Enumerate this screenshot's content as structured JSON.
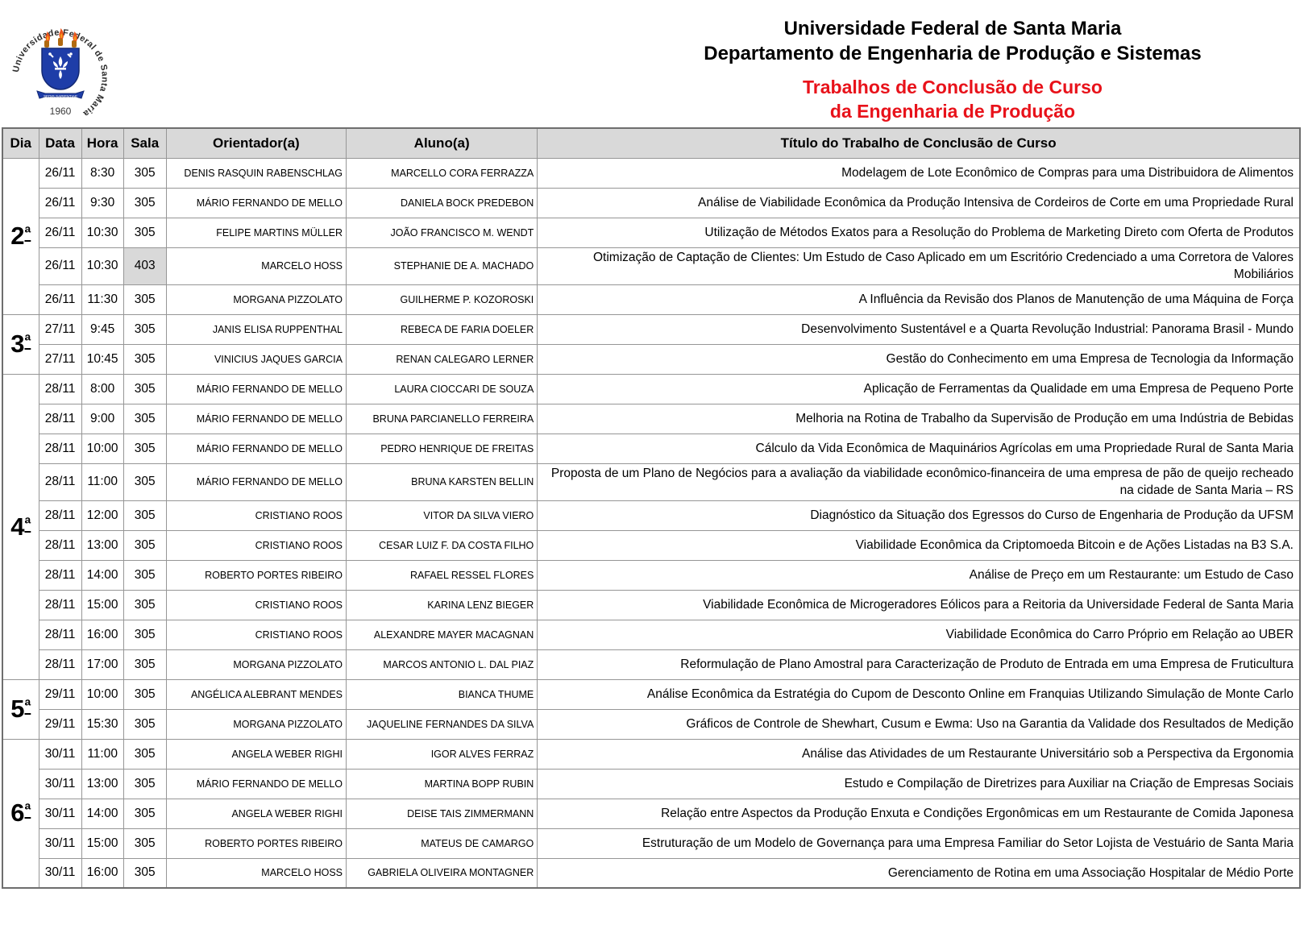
{
  "header": {
    "org_line1": "Universidade Federal de Santa Maria",
    "org_line2": "Departamento de Engenharia de Produção e Sistemas",
    "title_line1": "Trabalhos de Conclusão de Curso",
    "title_line2": "da Engenharia de Produção",
    "title_color": "#e8121a",
    "logo": {
      "ring_text": "Universidade Federal de Santa Maria",
      "banner_text": "SEDIS SAPIENTIAE",
      "year": "1960",
      "shield_color": "#1e3da8",
      "flame_color": "#e8521b"
    }
  },
  "table": {
    "columns": [
      "Dia",
      "Data",
      "Hora",
      "Sala",
      "Orientador(a)",
      "Aluno(a)",
      "Título do Trabalho de Conclusão de Curso"
    ],
    "groups": [
      {
        "day": "2ª",
        "rows": [
          {
            "data": "26/11",
            "hora": "8:30",
            "sala": "305",
            "orientador": "DENIS RASQUIN RABENSCHLAG",
            "aluno": "MARCELLO CORA FERRAZZA",
            "titulo": "Modelagem de Lote Econômico de Compras para uma Distribuidora de Alimentos"
          },
          {
            "data": "26/11",
            "hora": "9:30",
            "sala": "305",
            "orientador": "MÁRIO FERNANDO DE MELLO",
            "aluno": "DANIELA BOCK PREDEBON",
            "titulo": "Análise de Viabilidade Econômica da Produção Intensiva de Cordeiros de Corte em uma Propriedade Rural"
          },
          {
            "data": "26/11",
            "hora": "10:30",
            "sala": "305",
            "orientador": "FELIPE MARTINS MÜLLER",
            "aluno": "JOÃO FRANCISCO M. WENDT",
            "titulo": "Utilização de Métodos Exatos para a Resolução do Problema de Marketing Direto com Oferta de Produtos"
          },
          {
            "data": "26/11",
            "hora": "10:30",
            "sala": "403",
            "sala_highlight": true,
            "orientador": "MARCELO HOSS",
            "aluno": "STEPHANIE DE A. MACHADO",
            "titulo": "Otimização de Captação de Clientes: Um Estudo de Caso Aplicado em um Escritório Credenciado a uma Corretora de Valores Mobiliários"
          },
          {
            "data": "26/11",
            "hora": "11:30",
            "sala": "305",
            "orientador": "MORGANA PIZZOLATO",
            "aluno": "GUILHERME P. KOZOROSKI",
            "titulo": "A Influência da Revisão dos Planos de Manutenção de uma Máquina de Força"
          }
        ]
      },
      {
        "day": "3ª",
        "rows": [
          {
            "data": "27/11",
            "hora": "9:45",
            "sala": "305",
            "orientador": "JANIS ELISA RUPPENTHAL",
            "aluno": "REBECA DE FARIA DOELER",
            "titulo": "Desenvolvimento Sustentável e a Quarta Revolução Industrial: Panorama Brasil - Mundo"
          },
          {
            "data": "27/11",
            "hora": "10:45",
            "sala": "305",
            "orientador": "VINICIUS JAQUES GARCIA",
            "aluno": "RENAN CALEGARO LERNER",
            "titulo": "Gestão do Conhecimento em uma Empresa de Tecnologia da Informação"
          }
        ]
      },
      {
        "day": "4ª",
        "rows": [
          {
            "data": "28/11",
            "hora": "8:00",
            "sala": "305",
            "orientador": "MÁRIO FERNANDO DE MELLO",
            "aluno": "LAURA CIOCCARI DE SOUZA",
            "titulo": "Aplicação de Ferramentas da Qualidade em uma Empresa de Pequeno Porte"
          },
          {
            "data": "28/11",
            "hora": "9:00",
            "sala": "305",
            "orientador": "MÁRIO FERNANDO DE MELLO",
            "aluno": "BRUNA PARCIANELLO FERREIRA",
            "titulo": "Melhoria na Rotina de Trabalho da Supervisão de Produção em uma Indústria de Bebidas"
          },
          {
            "data": "28/11",
            "hora": "10:00",
            "sala": "305",
            "orientador": "MÁRIO FERNANDO DE MELLO",
            "aluno": "PEDRO HENRIQUE DE FREITAS",
            "titulo": "Cálculo da Vida Econômica de Maquinários Agrícolas em uma Propriedade Rural de Santa Maria"
          },
          {
            "data": "28/11",
            "hora": "11:00",
            "sala": "305",
            "orientador": "MÁRIO FERNANDO DE MELLO",
            "aluno": "BRUNA KARSTEN BELLIN",
            "titulo": "Proposta de um Plano de Negócios para a avaliação da viabilidade econômico-financeira de uma empresa de pão de queijo recheado na cidade de Santa Maria – RS"
          },
          {
            "data": "28/11",
            "hora": "12:00",
            "sala": "305",
            "orientador": "CRISTIANO ROOS",
            "aluno": "VITOR DA SILVA VIERO",
            "titulo": "Diagnóstico da Situação dos Egressos do Curso de Engenharia de Produção da UFSM"
          },
          {
            "data": "28/11",
            "hora": "13:00",
            "sala": "305",
            "orientador": "CRISTIANO ROOS",
            "aluno": "CESAR LUIZ F. DA COSTA FILHO",
            "titulo": "Viabilidade Econômica da Criptomoeda Bitcoin e de Ações Listadas na B3 S.A."
          },
          {
            "data": "28/11",
            "hora": "14:00",
            "sala": "305",
            "orientador": "ROBERTO PORTES RIBEIRO",
            "aluno": "RAFAEL RESSEL FLORES",
            "titulo": "Análise de Preço em um Restaurante: um Estudo de Caso"
          },
          {
            "data": "28/11",
            "hora": "15:00",
            "sala": "305",
            "orientador": "CRISTIANO ROOS",
            "aluno": "KARINA LENZ BIEGER",
            "titulo": "Viabilidade Econômica de Microgeradores Eólicos para a Reitoria da Universidade Federal de Santa Maria"
          },
          {
            "data": "28/11",
            "hora": "16:00",
            "sala": "305",
            "orientador": "CRISTIANO ROOS",
            "aluno": "ALEXANDRE MAYER MACAGNAN",
            "titulo": "Viabilidade Econômica do Carro Próprio em Relação ao UBER"
          },
          {
            "data": "28/11",
            "hora": "17:00",
            "sala": "305",
            "orientador": "MORGANA PIZZOLATO",
            "aluno": "MARCOS ANTONIO L. DAL PIAZ",
            "titulo": "Reformulação de Plano Amostral para Caracterização de Produto de Entrada em uma Empresa de Fruticultura"
          }
        ]
      },
      {
        "day": "5ª",
        "rows": [
          {
            "data": "29/11",
            "hora": "10:00",
            "sala": "305",
            "orientador": "ANGÉLICA ALEBRANT MENDES",
            "aluno": "BIANCA THUME",
            "titulo": "Análise Econômica da Estratégia do Cupom de Desconto Online em Franquias Utilizando Simulação de Monte Carlo"
          },
          {
            "data": "29/11",
            "hora": "15:30",
            "sala": "305",
            "orientador": "MORGANA PIZZOLATO",
            "aluno": "JAQUELINE FERNANDES DA SILVA",
            "titulo": "Gráficos de Controle de Shewhart, Cusum e Ewma: Uso na Garantia da Validade dos Resultados de Medição"
          }
        ]
      },
      {
        "day": "6ª",
        "rows": [
          {
            "data": "30/11",
            "hora": "11:00",
            "sala": "305",
            "orientador": "ANGELA WEBER RIGHI",
            "aluno": "IGOR ALVES FERRAZ",
            "titulo": "Análise das Atividades de um Restaurante Universitário sob a Perspectiva da Ergonomia"
          },
          {
            "data": "30/11",
            "hora": "13:00",
            "sala": "305",
            "orientador": "MÁRIO FERNANDO DE MELLO",
            "aluno": "MARTINA BOPP RUBIN",
            "titulo": "Estudo e Compilação de Diretrizes para Auxiliar na Criação de Empresas Sociais"
          },
          {
            "data": "30/11",
            "hora": "14:00",
            "sala": "305",
            "orientador": "ANGELA WEBER RIGHI",
            "aluno": "DEISE TAIS ZIMMERMANN",
            "titulo": "Relação entre Aspectos da Produção Enxuta e Condições Ergonômicas em um Restaurante de Comida Japonesa"
          },
          {
            "data": "30/11",
            "hora": "15:00",
            "sala": "305",
            "orientador": "ROBERTO PORTES RIBEIRO",
            "aluno": "MATEUS DE CAMARGO",
            "titulo": "Estruturação de um Modelo de Governança para uma Empresa Familiar do Setor Lojista de Vestuário de Santa Maria"
          },
          {
            "data": "30/11",
            "hora": "16:00",
            "sala": "305",
            "orientador": "MARCELO HOSS",
            "aluno": "GABRIELA OLIVEIRA MONTAGNER",
            "titulo": "Gerenciamento de Rotina em uma Associação Hospitalar de Médio Porte"
          }
        ]
      }
    ]
  }
}
